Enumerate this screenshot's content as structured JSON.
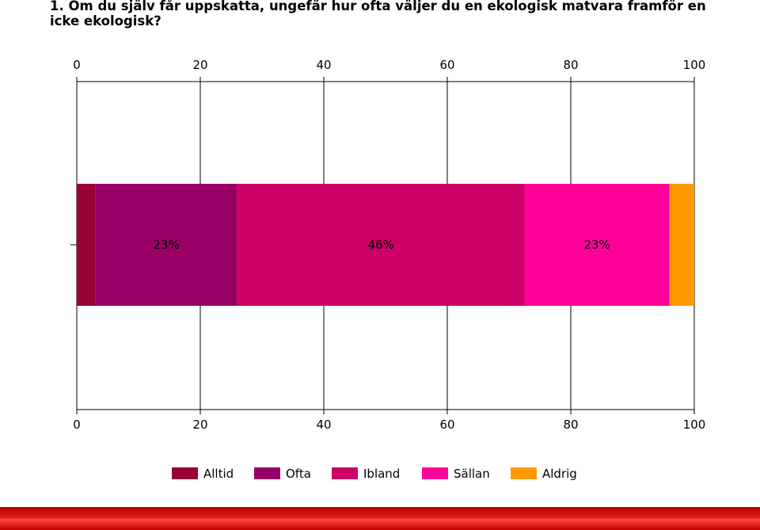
{
  "title": "1. Om du själv får uppskatta, ungefär hur ofta väljer du en ekologisk matvara framför en icke ekologisk?",
  "chart_data": {
    "type": "bar",
    "orientation": "horizontal",
    "stacked": true,
    "title": "1. Om du själv får uppskatta, ungefär hur ofta väljer du en ekologisk matvara framför en icke ekologisk?",
    "xlabel": "",
    "ylabel": "",
    "xlim": [
      0,
      100
    ],
    "x_ticks": [
      "0",
      "20",
      "40",
      "60",
      "80",
      "100"
    ],
    "grid": true,
    "legend_position": "bottom",
    "series": [
      {
        "name": "Alltid",
        "value": 3,
        "label": "",
        "color": "#990033"
      },
      {
        "name": "Ofta",
        "value": 23,
        "label": "23%",
        "color": "#990066"
      },
      {
        "name": "Ibland",
        "value": 46.5,
        "label": "46%",
        "color": "#cc0066"
      },
      {
        "name": "Sällan",
        "value": 23.5,
        "label": "23%",
        "color": "#ff0099"
      },
      {
        "name": "Aldrig",
        "value": 4,
        "label": "",
        "color": "#ff9900"
      }
    ]
  }
}
